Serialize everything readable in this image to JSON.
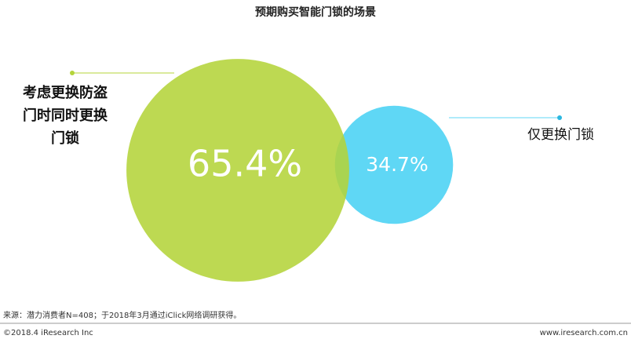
{
  "chart_data": {
    "type": "circles",
    "title": "预期购买智能门锁的场景",
    "categories": [
      "考虑更换防盗门时同时更换门锁",
      "仅更换门锁"
    ],
    "values": [
      65.4,
      34.7
    ],
    "value_labels": [
      "65.4%",
      "34.7%"
    ],
    "colors": [
      "#b4d43a",
      "#5fd7f5"
    ],
    "source": "来源：潜力消费者N=408；于2018年3月通过iClick网络调研获得。",
    "copyright": "©2018.4 iResearch Inc",
    "website": "www.iresearch.com.cn"
  }
}
